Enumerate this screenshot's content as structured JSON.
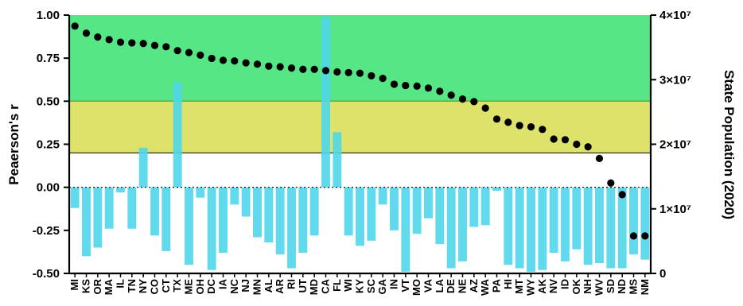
{
  "chart_data": {
    "type": "bar+scatter",
    "categories": [
      "MI",
      "KS",
      "OR",
      "MA",
      "IL",
      "TN",
      "NY",
      "CO",
      "CT",
      "TX",
      "ME",
      "OH",
      "DC",
      "IA",
      "NC",
      "NJ",
      "MN",
      "AL",
      "AR",
      "RI",
      "UT",
      "MD",
      "CA",
      "FL",
      "WI",
      "KY",
      "SC",
      "GA",
      "IN",
      "VT",
      "MO",
      "VA",
      "LA",
      "DE",
      "NE",
      "AZ",
      "WA",
      "PA",
      "HI",
      "MT",
      "WY",
      "AK",
      "NV",
      "ID",
      "OK",
      "NH",
      "WV",
      "SD",
      "ND",
      "MS",
      "NM"
    ],
    "series": [
      {
        "kind": "bar",
        "axis": "left",
        "color": "#4fd6ea",
        "values": [
          -0.12,
          -0.4,
          -0.35,
          -0.24,
          -0.03,
          -0.24,
          0.23,
          -0.28,
          -0.37,
          0.61,
          -0.45,
          -0.06,
          -0.48,
          -0.38,
          -0.1,
          -0.17,
          -0.29,
          -0.32,
          -0.39,
          -0.47,
          -0.38,
          -0.28,
          0.99,
          0.32,
          -0.28,
          -0.34,
          -0.31,
          -0.1,
          -0.25,
          -0.49,
          -0.27,
          -0.18,
          -0.33,
          -0.47,
          -0.43,
          -0.23,
          -0.22,
          -0.02,
          -0.45,
          -0.47,
          -0.49,
          -0.48,
          -0.38,
          -0.43,
          -0.36,
          -0.45,
          -0.44,
          -0.47,
          -0.47,
          -0.39,
          -0.42
        ]
      },
      {
        "kind": "scatter",
        "axis": "right",
        "color": "#000000",
        "values": [
          38300000,
          37200000,
          36600000,
          36200000,
          35800000,
          35700000,
          35600000,
          35300000,
          35100000,
          34500000,
          34200000,
          33800000,
          33300000,
          33000000,
          32900000,
          32600000,
          32400000,
          32100000,
          32000000,
          31800000,
          31600000,
          31600000,
          31400000,
          31200000,
          31100000,
          31000000,
          30600000,
          30200000,
          29300000,
          29100000,
          29000000,
          28700000,
          28200000,
          27600000,
          27000000,
          26600000,
          25600000,
          23900000,
          23400000,
          22900000,
          22700000,
          22300000,
          20800000,
          20700000,
          20000000,
          19600000,
          17800000,
          14000000,
          12200000,
          5800000,
          5800000
        ]
      }
    ],
    "y_left": {
      "label": "Peaerson's r",
      "ylim": [
        -0.5,
        1.0
      ],
      "ticks": [
        "1.00",
        "0.75",
        "0.50",
        "0.25",
        "0.00",
        "-0.25",
        "-0.50"
      ],
      "tick_values": [
        1.0,
        0.75,
        0.5,
        0.25,
        0.0,
        -0.25,
        -0.5
      ]
    },
    "y_right": {
      "label": "State Population (2020)",
      "ylim": [
        0,
        40000000
      ],
      "ticks": [
        "4×10⁷",
        "3×10⁷",
        "2×10⁷",
        "1×10⁷",
        "0"
      ],
      "tick_values": [
        40000000,
        30000000,
        20000000,
        10000000,
        0
      ]
    },
    "bands": [
      {
        "from": 0.5,
        "to": 1.0,
        "color": "#56e685"
      },
      {
        "from": 0.2,
        "to": 0.5,
        "color": "#dde36a"
      }
    ],
    "reference_line": 0.0,
    "grid": false,
    "legend": "none"
  }
}
